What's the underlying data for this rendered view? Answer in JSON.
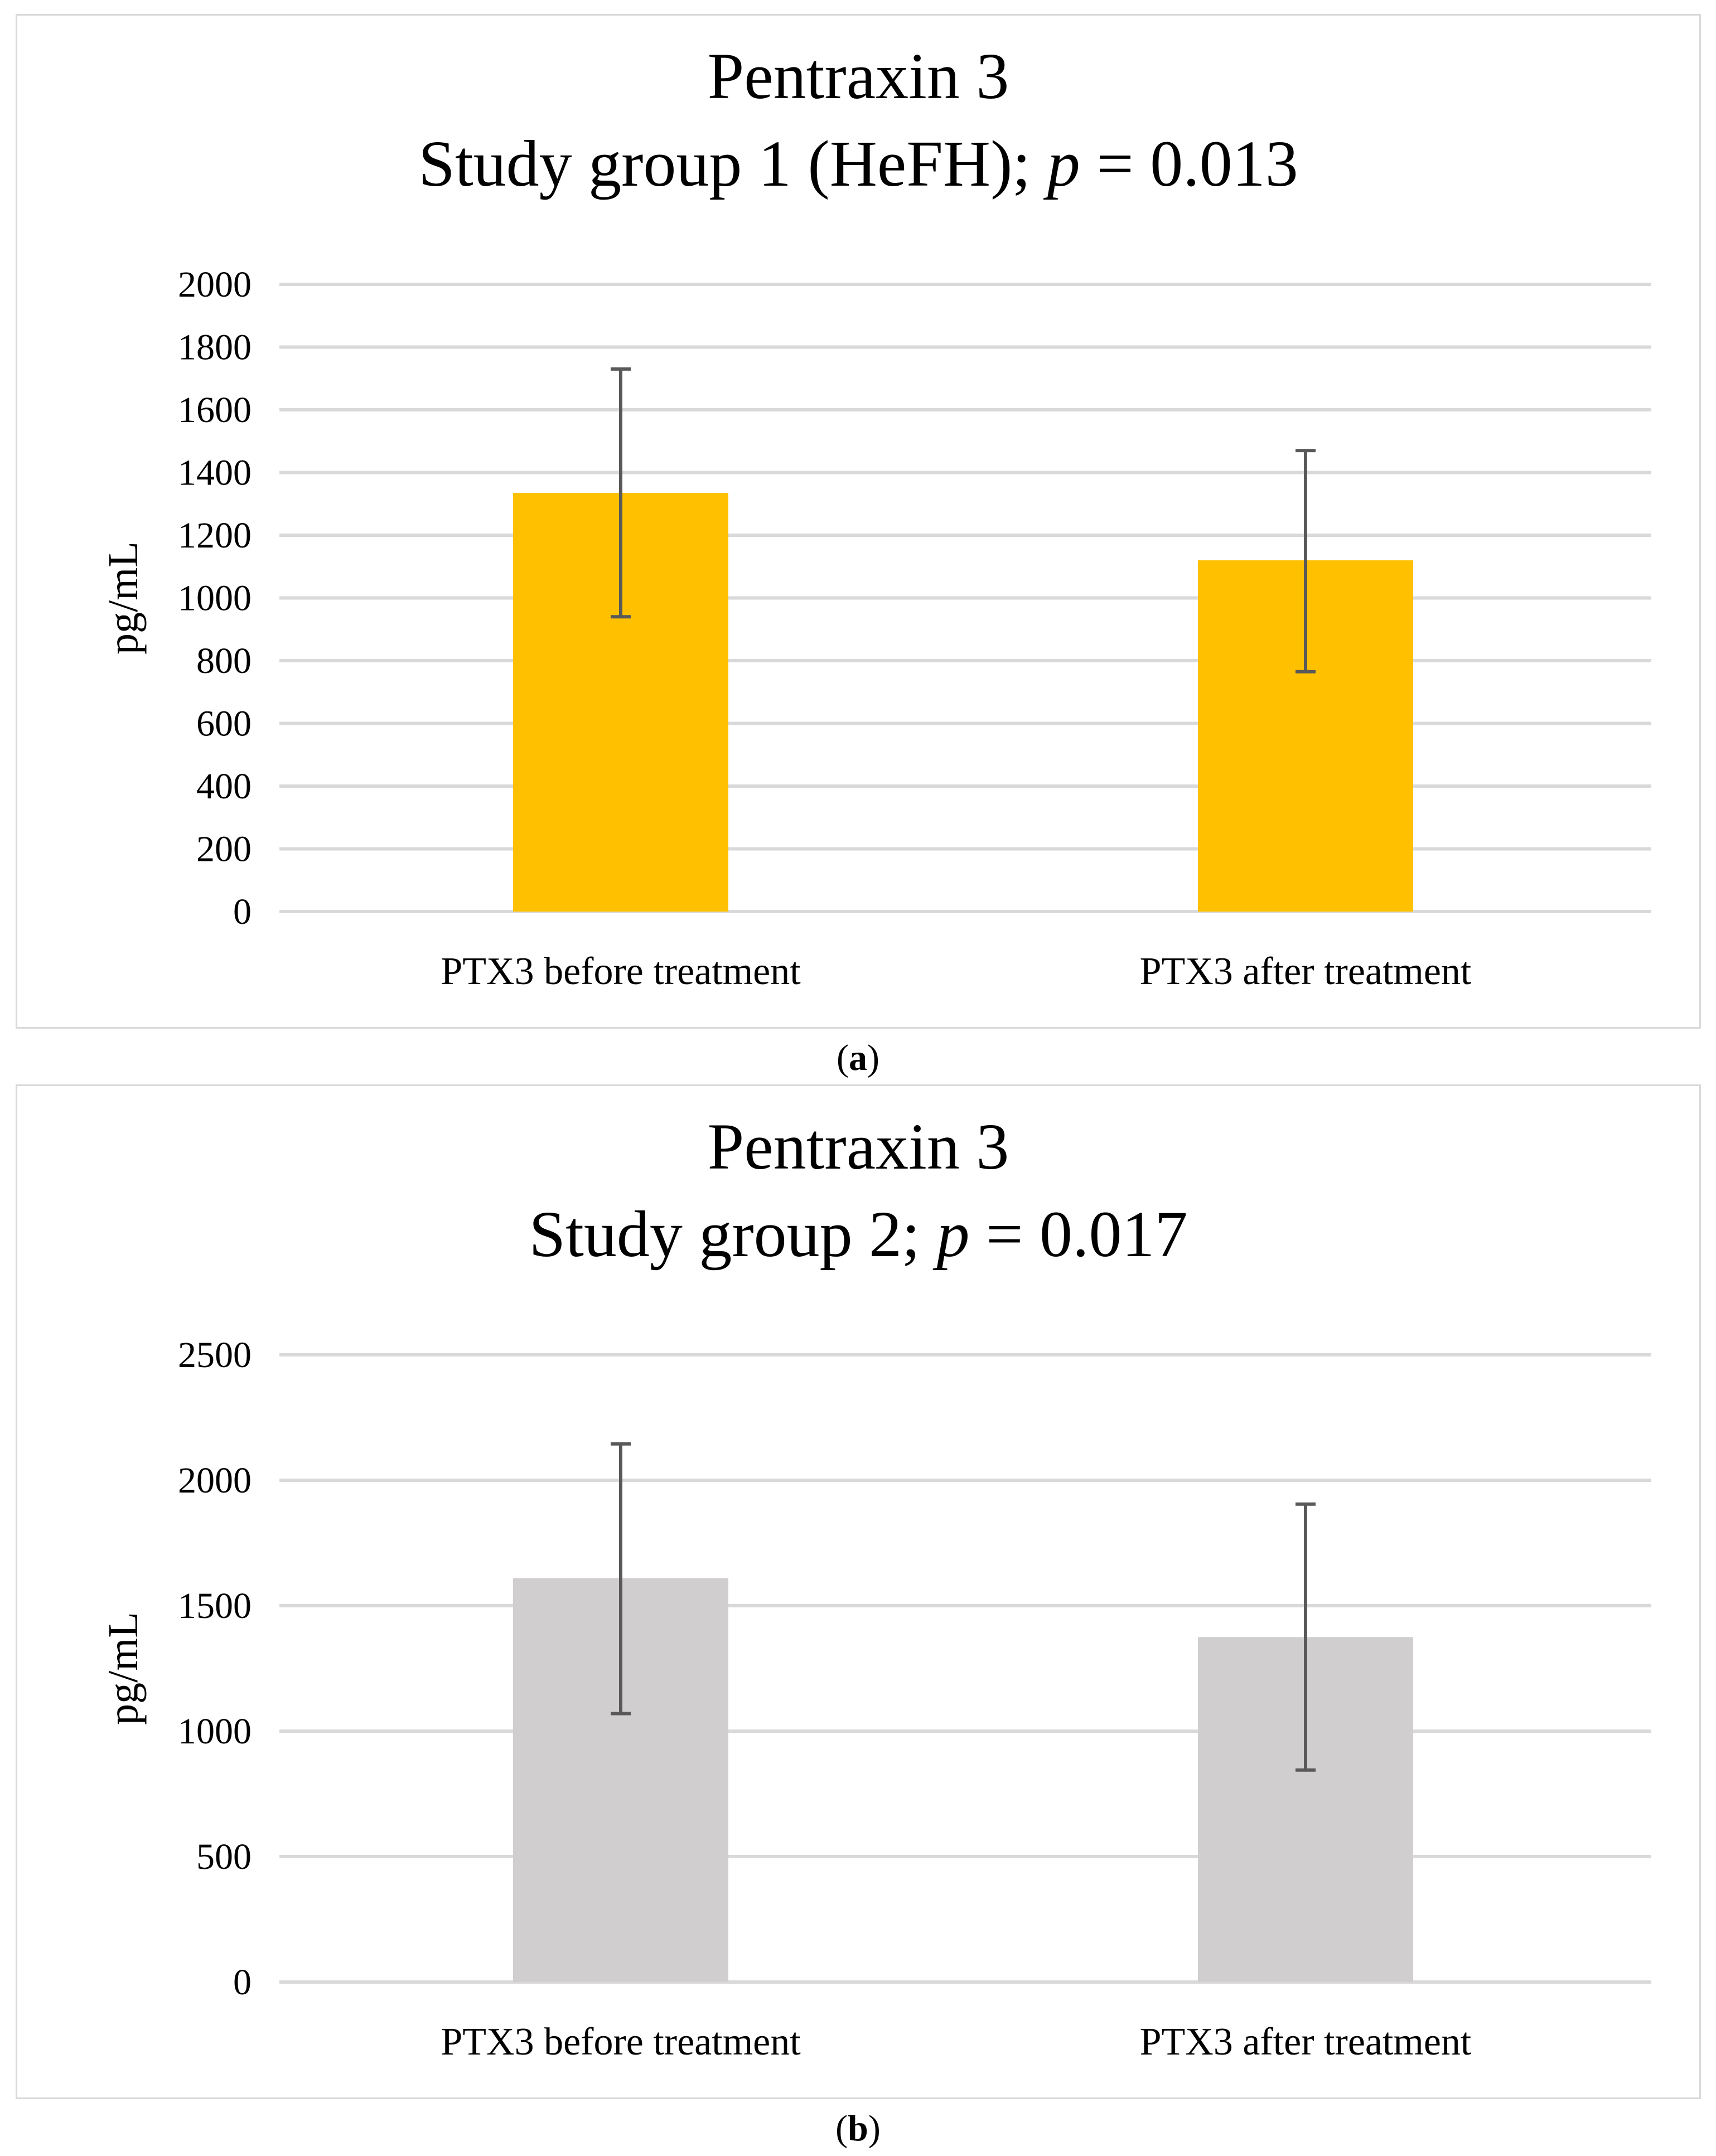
{
  "chart_data": [
    {
      "type": "bar",
      "title_line1": "Pentraxin 3",
      "title_line2_prefix": "Study group 1 (HeFH); ",
      "title_line2_p": "p",
      "title_line2_suffix": " = 0.013",
      "ylabel": "pg/mL",
      "ylim": [
        0,
        2000
      ],
      "yticks": [
        0,
        200,
        400,
        600,
        800,
        1000,
        1200,
        1400,
        1600,
        1800,
        2000
      ],
      "categories": [
        "PTX3 before treatment",
        "PTX3 after treatment"
      ],
      "values": [
        1335,
        1120
      ],
      "error_low": [
        940,
        765
      ],
      "error_high": [
        1730,
        1470
      ],
      "bar_color": "#FFC000",
      "grid": true,
      "caption_letter": "a"
    },
    {
      "type": "bar",
      "title_line1": "Pentraxin 3",
      "title_line2_prefix": "Study group 2; ",
      "title_line2_p": "p",
      "title_line2_suffix": " = 0.017",
      "ylabel": "pg/mL",
      "ylim": [
        0,
        2500
      ],
      "yticks": [
        0,
        500,
        1000,
        1500,
        2000,
        2500
      ],
      "categories": [
        "PTX3 before treatment",
        "PTX3 after treatment"
      ],
      "values": [
        1610,
        1375
      ],
      "error_low": [
        1070,
        845
      ],
      "error_high": [
        2145,
        1905
      ],
      "bar_color": "#D0CECE",
      "grid": true,
      "caption_letter": "b"
    }
  ]
}
